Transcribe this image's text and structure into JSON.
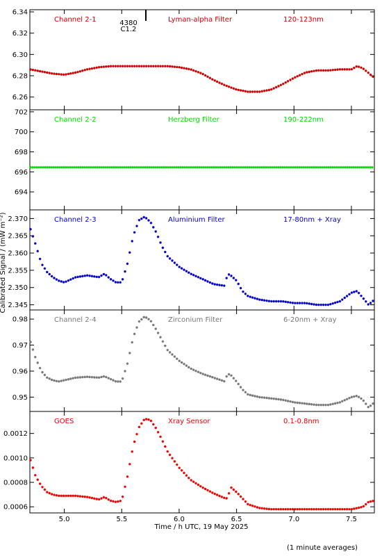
{
  "figure": {
    "xlabel": "Time / h UTC, 19 May 2025",
    "ylabel": "Calibrated Signal / (mW m⁻²)",
    "footer": "(1 minute averages)",
    "xlim": [
      4.7,
      7.7
    ],
    "xticks": [
      5.0,
      5.5,
      6.0,
      6.5,
      7.0,
      7.5
    ],
    "xtick_labels": [
      "5.0",
      "5.5",
      "6.0",
      "6.5",
      "7.0",
      "7.5"
    ],
    "flare_marker": {
      "x": 5.71,
      "labels": [
        "4380",
        "C1.2"
      ]
    }
  },
  "chart_data": [
    {
      "type": "scatter",
      "marker": "asterisk",
      "color": "#cc0000",
      "labels": [
        "Channel 2-1",
        "Lyman-alpha Filter",
        "120-123nm"
      ],
      "ylim": [
        6.248,
        6.342
      ],
      "yticks": [
        6.26,
        6.28,
        6.3,
        6.32,
        6.34
      ],
      "ytick_labels": [
        "6.26",
        "6.28",
        "6.30",
        "6.32",
        "6.34"
      ],
      "x": [
        4.7,
        4.8,
        4.9,
        5.0,
        5.1,
        5.2,
        5.3,
        5.4,
        5.5,
        5.6,
        5.7,
        5.8,
        5.9,
        6.0,
        6.1,
        6.2,
        6.3,
        6.4,
        6.5,
        6.6,
        6.7,
        6.8,
        6.9,
        7.0,
        7.1,
        7.2,
        7.3,
        7.4,
        7.5,
        7.55,
        7.6,
        7.7
      ],
      "values": [
        6.286,
        6.284,
        6.282,
        6.281,
        6.283,
        6.286,
        6.288,
        6.289,
        6.289,
        6.289,
        6.289,
        6.289,
        6.289,
        6.288,
        6.286,
        6.282,
        6.276,
        6.271,
        6.267,
        6.265,
        6.265,
        6.267,
        6.272,
        6.278,
        6.283,
        6.285,
        6.285,
        6.286,
        6.286,
        6.289,
        6.287,
        6.278
      ]
    },
    {
      "type": "scatter",
      "marker": "asterisk",
      "color": "#00dd00",
      "labels": [
        "Channel 2-2",
        "Herzberg Filter",
        "190-222nm"
      ],
      "ylim": [
        692.2,
        702.2
      ],
      "yticks": [
        694,
        696,
        698,
        700,
        702
      ],
      "ytick_labels": [
        "694",
        "696",
        "698",
        "700",
        "702"
      ],
      "x": [
        4.7,
        5.0,
        5.3,
        5.6,
        5.9,
        6.2,
        6.5,
        6.8,
        7.1,
        7.4,
        7.7
      ],
      "values": [
        696.45,
        696.45,
        696.45,
        696.45,
        696.45,
        696.45,
        696.45,
        696.45,
        696.45,
        696.45,
        696.45
      ]
    },
    {
      "type": "scatter",
      "marker": "asterisk",
      "color": "#0000cc",
      "labels": [
        "Channel 2-3",
        "Aluminium Filter",
        "17-80nm + Xray"
      ],
      "ylim": [
        2.3435,
        2.3725
      ],
      "yticks": [
        2.345,
        2.35,
        2.355,
        2.36,
        2.365,
        2.37
      ],
      "ytick_labels": [
        "2.345",
        "2.350",
        "2.355",
        "2.360",
        "2.365",
        "2.370"
      ],
      "x": [
        4.7,
        4.75,
        4.8,
        4.85,
        4.9,
        4.95,
        5.0,
        5.1,
        5.2,
        5.3,
        5.35,
        5.4,
        5.45,
        5.5,
        5.55,
        5.6,
        5.65,
        5.7,
        5.75,
        5.8,
        5.85,
        5.9,
        6.0,
        6.1,
        6.2,
        6.3,
        6.4,
        6.42,
        6.45,
        6.5,
        6.55,
        6.6,
        6.7,
        6.8,
        6.9,
        7.0,
        7.1,
        7.2,
        7.3,
        7.4,
        7.5,
        7.55,
        7.6,
        7.65,
        7.7
      ],
      "values": [
        2.3675,
        2.3625,
        2.357,
        2.3545,
        2.353,
        2.352,
        2.3515,
        2.353,
        2.3535,
        2.353,
        2.354,
        2.3525,
        2.3515,
        2.3515,
        2.357,
        2.365,
        2.3695,
        2.3705,
        2.369,
        2.366,
        2.362,
        2.359,
        2.356,
        2.354,
        2.3525,
        2.351,
        2.3505,
        2.354,
        2.3535,
        2.352,
        2.349,
        2.3475,
        2.3465,
        2.346,
        2.346,
        2.3455,
        2.3455,
        2.345,
        2.345,
        2.346,
        2.3485,
        2.349,
        2.347,
        2.345,
        2.3465
      ]
    },
    {
      "type": "scatter",
      "marker": "asterisk",
      "color": "#777777",
      "labels": [
        "Channel 2-4",
        "Zirconium Filter",
        "6-20nm + Xray"
      ],
      "ylim": [
        0.9445,
        0.9835
      ],
      "yticks": [
        0.95,
        0.96,
        0.97,
        0.98
      ],
      "ytick_labels": [
        "0.95",
        "0.96",
        "0.97",
        "0.98"
      ],
      "x": [
        4.7,
        4.75,
        4.8,
        4.85,
        4.9,
        4.95,
        5.0,
        5.1,
        5.2,
        5.3,
        5.35,
        5.4,
        5.45,
        5.5,
        5.55,
        5.6,
        5.65,
        5.7,
        5.75,
        5.8,
        5.85,
        5.9,
        6.0,
        6.1,
        6.2,
        6.3,
        6.4,
        6.42,
        6.45,
        6.5,
        6.55,
        6.6,
        6.7,
        6.8,
        6.9,
        7.0,
        7.1,
        7.2,
        7.3,
        7.4,
        7.5,
        7.55,
        7.6,
        7.65,
        7.7
      ],
      "values": [
        0.972,
        0.965,
        0.96,
        0.9575,
        0.9565,
        0.956,
        0.9565,
        0.9575,
        0.9578,
        0.9575,
        0.958,
        0.957,
        0.956,
        0.956,
        0.963,
        0.973,
        0.979,
        0.981,
        0.9795,
        0.976,
        0.972,
        0.968,
        0.964,
        0.961,
        0.959,
        0.9575,
        0.956,
        0.959,
        0.9585,
        0.956,
        0.953,
        0.951,
        0.95,
        0.9495,
        0.949,
        0.948,
        0.9475,
        0.947,
        0.947,
        0.948,
        0.95,
        0.9505,
        0.949,
        0.946,
        0.948
      ]
    },
    {
      "type": "scatter",
      "marker": "asterisk",
      "color": "#ee0000",
      "labels": [
        "GOES",
        "Xray Sensor",
        "0.1-0.8nm"
      ],
      "ylim": [
        0.00055,
        0.00138
      ],
      "yticks": [
        0.0006,
        0.0008,
        0.001,
        0.0012
      ],
      "ytick_labels": [
        "0.0006",
        "0.0008",
        "0.0010",
        "0.0012"
      ],
      "x": [
        4.7,
        4.75,
        4.8,
        4.85,
        4.9,
        4.95,
        5.0,
        5.1,
        5.2,
        5.3,
        5.35,
        5.4,
        5.45,
        5.5,
        5.55,
        5.6,
        5.65,
        5.7,
        5.75,
        5.8,
        5.85,
        5.9,
        6.0,
        6.1,
        6.2,
        6.3,
        6.4,
        6.42,
        6.45,
        6.5,
        6.55,
        6.6,
        6.7,
        6.8,
        6.9,
        7.0,
        7.1,
        7.2,
        7.3,
        7.4,
        7.5,
        7.55,
        7.6,
        7.65,
        7.7
      ],
      "values": [
        0.001,
        0.00085,
        0.00077,
        0.00072,
        0.0007,
        0.00069,
        0.00069,
        0.00069,
        0.00068,
        0.00066,
        0.00068,
        0.00065,
        0.00064,
        0.00065,
        0.00085,
        0.0011,
        0.00125,
        0.00132,
        0.00131,
        0.00124,
        0.00115,
        0.00105,
        0.00092,
        0.00082,
        0.00076,
        0.00071,
        0.00067,
        0.00067,
        0.00076,
        0.00072,
        0.00067,
        0.00062,
        0.00059,
        0.00058,
        0.00058,
        0.00058,
        0.00058,
        0.00058,
        0.00058,
        0.00058,
        0.00058,
        0.00059,
        0.0006,
        0.00064,
        0.00065
      ]
    }
  ]
}
